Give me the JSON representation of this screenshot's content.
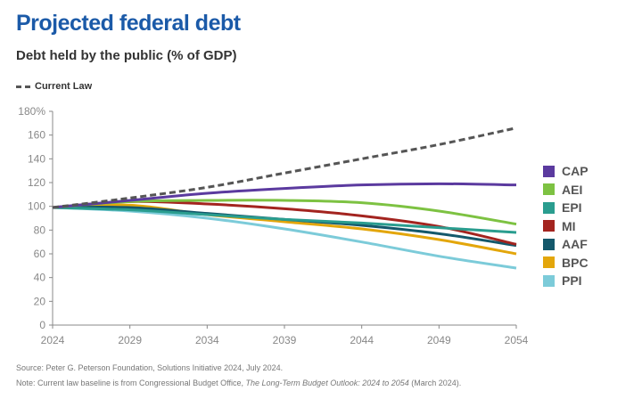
{
  "title": "Projected federal debt",
  "subtitle": "Debt held by the public (% of GDP)",
  "footer": {
    "source": "Source: Peter G. Peterson Foundation, Solutions Initiative 2024, July 2024.",
    "note_prefix": "Note: Current law baseline is from Congressional Budget Office, ",
    "note_italic": "The Long-Term Budget Outlook: 2024 to 2054",
    "note_suffix": " (March 2024)."
  },
  "chart_data": {
    "type": "line",
    "title": "Projected federal debt",
    "ylabel": "Debt held by the public (% of GDP)",
    "x": [
      2024,
      2029,
      2034,
      2039,
      2044,
      2049,
      2054
    ],
    "xlim": [
      2024,
      2054
    ],
    "ylim": [
      0,
      180
    ],
    "yticks": [
      0,
      20,
      40,
      60,
      80,
      100,
      120,
      140,
      160,
      180
    ],
    "ytick_labels": [
      "0",
      "20",
      "40",
      "60",
      "80",
      "100",
      "120",
      "140",
      "160",
      "180%"
    ],
    "xtick_labels": [
      "2024",
      "2029",
      "2034",
      "2039",
      "2044",
      "2049",
      "2054"
    ],
    "grid": false,
    "legend_position": "right",
    "series": [
      {
        "name": "Current Law",
        "color": "#555555",
        "dashed": true,
        "values": [
          99,
          107,
          116,
          128,
          140,
          152,
          166
        ]
      },
      {
        "name": "CAP",
        "color": "#5b3a9f",
        "values": [
          99,
          105,
          111,
          115,
          118,
          119,
          118
        ]
      },
      {
        "name": "AEI",
        "color": "#7dc242",
        "values": [
          99,
          104,
          105,
          105,
          103,
          96,
          85
        ]
      },
      {
        "name": "EPI",
        "color": "#2a9d8f",
        "values": [
          99,
          97,
          93,
          89,
          86,
          82,
          78
        ]
      },
      {
        "name": "MI",
        "color": "#a3241f",
        "values": [
          99,
          104,
          102,
          98,
          92,
          83,
          68
        ]
      },
      {
        "name": "AAF",
        "color": "#14586b",
        "values": [
          99,
          99,
          94,
          89,
          84,
          77,
          67
        ]
      },
      {
        "name": "BPC",
        "color": "#e3a60b",
        "values": [
          99,
          101,
          93,
          87,
          81,
          72,
          60
        ]
      },
      {
        "name": "PPI",
        "color": "#7ccbd9",
        "values": [
          99,
          96,
          90,
          81,
          70,
          58,
          48
        ]
      }
    ]
  }
}
